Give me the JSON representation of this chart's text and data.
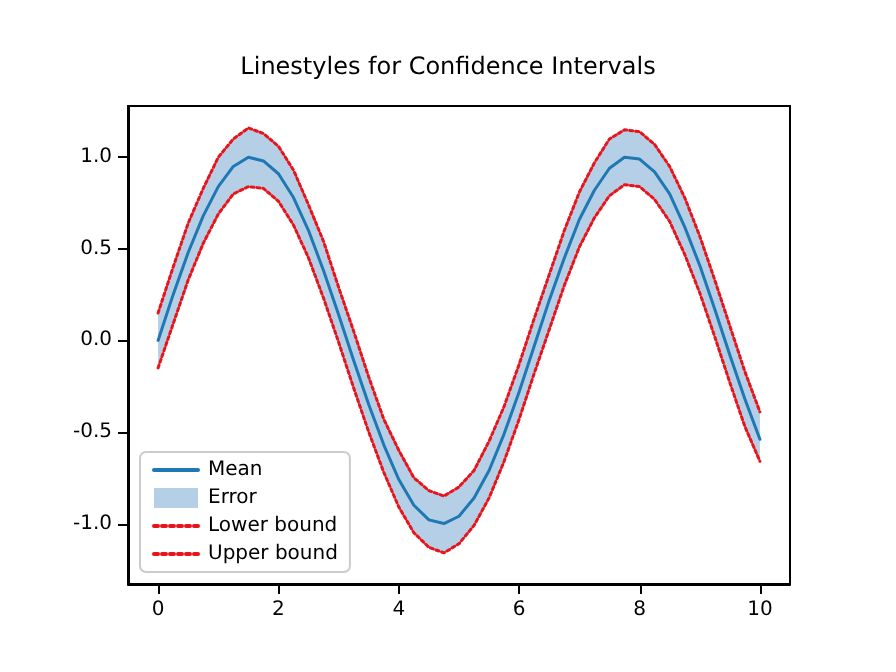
{
  "chart_data": {
    "type": "line",
    "title": "Linestyles for Confidence Intervals",
    "x": [
      0,
      0.25,
      0.5,
      0.75,
      1,
      1.25,
      1.5,
      1.75,
      2,
      2.25,
      2.5,
      2.75,
      3,
      3.25,
      3.5,
      3.75,
      4,
      4.25,
      4.5,
      4.75,
      5,
      5.25,
      5.5,
      5.75,
      6,
      6.25,
      6.5,
      6.75,
      7,
      7.25,
      7.5,
      7.75,
      8,
      8.25,
      8.5,
      8.75,
      9,
      9.25,
      9.5,
      9.75,
      10
    ],
    "series": [
      {
        "name": "Mean",
        "color": "#1f77b4",
        "line_style": "solid",
        "values": [
          0,
          0.25,
          0.48,
          0.68,
          0.84,
          0.95,
          1.0,
          0.98,
          0.91,
          0.78,
          0.6,
          0.38,
          0.14,
          -0.11,
          -0.35,
          -0.57,
          -0.76,
          -0.9,
          -0.98,
          -1.0,
          -0.96,
          -0.86,
          -0.71,
          -0.51,
          -0.28,
          -0.03,
          0.22,
          0.45,
          0.66,
          0.82,
          0.94,
          1.0,
          0.99,
          0.92,
          0.8,
          0.62,
          0.41,
          0.17,
          -0.08,
          -0.32,
          -0.54
        ]
      },
      {
        "name": "Error",
        "type": "area",
        "color": "#b5d0e6",
        "values": [
          null,
          null,
          null,
          null,
          null,
          null,
          null,
          null,
          null,
          null,
          null,
          null,
          null,
          null,
          null,
          null,
          null,
          null,
          null,
          null,
          null,
          null,
          null,
          null,
          null,
          null,
          null,
          null,
          null,
          null,
          null,
          null,
          null,
          null,
          null,
          null,
          null,
          null,
          null,
          null,
          null
        ],
        "lower": [
          -0.15,
          0.09,
          0.33,
          0.53,
          0.69,
          0.8,
          0.84,
          0.83,
          0.76,
          0.63,
          0.45,
          0.23,
          -0.01,
          -0.26,
          -0.5,
          -0.72,
          -0.91,
          -1.05,
          -1.13,
          -1.16,
          -1.11,
          -1.01,
          -0.86,
          -0.66,
          -0.43,
          -0.18,
          0.06,
          0.3,
          0.51,
          0.67,
          0.79,
          0.85,
          0.84,
          0.77,
          0.65,
          0.47,
          0.26,
          0.02,
          -0.23,
          -0.47,
          -0.66
        ],
        "upper": [
          0.15,
          0.4,
          0.64,
          0.83,
          1.0,
          1.1,
          1.16,
          1.13,
          1.06,
          0.93,
          0.74,
          0.54,
          0.29,
          0.05,
          -0.2,
          -0.43,
          -0.6,
          -0.75,
          -0.82,
          -0.85,
          -0.8,
          -0.71,
          -0.55,
          -0.36,
          -0.13,
          0.12,
          0.36,
          0.6,
          0.81,
          0.97,
          1.1,
          1.15,
          1.14,
          1.07,
          0.95,
          0.78,
          0.57,
          0.33,
          0.08,
          -0.17,
          -0.39
        ]
      },
      {
        "name": "Lower bound",
        "color": "#e8141c",
        "line_style": "dotted",
        "values": [
          -0.15,
          0.09,
          0.33,
          0.53,
          0.69,
          0.8,
          0.84,
          0.83,
          0.76,
          0.63,
          0.45,
          0.23,
          -0.01,
          -0.26,
          -0.5,
          -0.72,
          -0.91,
          -1.05,
          -1.13,
          -1.16,
          -1.11,
          -1.01,
          -0.86,
          -0.66,
          -0.43,
          -0.18,
          0.06,
          0.3,
          0.51,
          0.67,
          0.79,
          0.85,
          0.84,
          0.77,
          0.65,
          0.47,
          0.26,
          0.02,
          -0.23,
          -0.47,
          -0.66
        ]
      },
      {
        "name": "Upper bound",
        "color": "#e8141c",
        "line_style": "dotted",
        "values": [
          0.15,
          0.4,
          0.64,
          0.83,
          1.0,
          1.1,
          1.16,
          1.13,
          1.06,
          0.93,
          0.74,
          0.54,
          0.29,
          0.05,
          -0.2,
          -0.43,
          -0.6,
          -0.75,
          -0.82,
          -0.85,
          -0.8,
          -0.71,
          -0.55,
          -0.36,
          -0.13,
          0.12,
          0.36,
          0.6,
          0.81,
          0.97,
          1.1,
          1.15,
          1.14,
          1.07,
          0.95,
          0.78,
          0.57,
          0.33,
          0.08,
          -0.17,
          -0.39
        ]
      }
    ],
    "xlim": [
      -0.5,
      10.5
    ],
    "xticks": [
      0,
      2,
      4,
      6,
      8,
      10
    ],
    "ylim": [
      -1.33,
      1.28
    ],
    "yticks": [
      {
        "value": -1,
        "label": "-1.0"
      },
      {
        "value": -0.5,
        "label": "-0.5"
      },
      {
        "value": 0,
        "label": "0.0"
      },
      {
        "value": 0.5,
        "label": "0.5"
      },
      {
        "value": 1,
        "label": "1.0"
      }
    ],
    "grid": false,
    "legend": "bottom left"
  }
}
